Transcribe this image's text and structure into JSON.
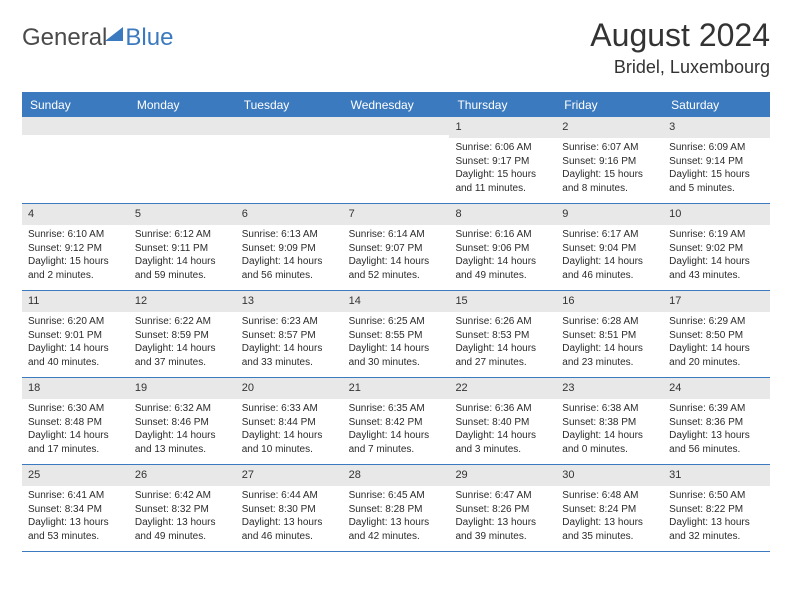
{
  "logo": {
    "word1": "General",
    "word2": "Blue"
  },
  "title": "August 2024",
  "location": "Bridel, Luxembourg",
  "colors": {
    "brand_blue": "#3b7abf",
    "header_text": "#ffffff",
    "daynum_bg": "#e8e8e8",
    "body_text": "#2b2b2b",
    "title_text": "#333333",
    "background": "#ffffff"
  },
  "typography": {
    "title_fontsize": 32,
    "location_fontsize": 18,
    "dayheader_fontsize": 12,
    "cell_fontsize": 10,
    "font_family": "Arial"
  },
  "day_names": [
    "Sunday",
    "Monday",
    "Tuesday",
    "Wednesday",
    "Thursday",
    "Friday",
    "Saturday"
  ],
  "weeks": [
    [
      {
        "n": "",
        "sr": "",
        "ss": "",
        "dl": ""
      },
      {
        "n": "",
        "sr": "",
        "ss": "",
        "dl": ""
      },
      {
        "n": "",
        "sr": "",
        "ss": "",
        "dl": ""
      },
      {
        "n": "",
        "sr": "",
        "ss": "",
        "dl": ""
      },
      {
        "n": "1",
        "sr": "Sunrise: 6:06 AM",
        "ss": "Sunset: 9:17 PM",
        "dl": "Daylight: 15 hours and 11 minutes."
      },
      {
        "n": "2",
        "sr": "Sunrise: 6:07 AM",
        "ss": "Sunset: 9:16 PM",
        "dl": "Daylight: 15 hours and 8 minutes."
      },
      {
        "n": "3",
        "sr": "Sunrise: 6:09 AM",
        "ss": "Sunset: 9:14 PM",
        "dl": "Daylight: 15 hours and 5 minutes."
      }
    ],
    [
      {
        "n": "4",
        "sr": "Sunrise: 6:10 AM",
        "ss": "Sunset: 9:12 PM",
        "dl": "Daylight: 15 hours and 2 minutes."
      },
      {
        "n": "5",
        "sr": "Sunrise: 6:12 AM",
        "ss": "Sunset: 9:11 PM",
        "dl": "Daylight: 14 hours and 59 minutes."
      },
      {
        "n": "6",
        "sr": "Sunrise: 6:13 AM",
        "ss": "Sunset: 9:09 PM",
        "dl": "Daylight: 14 hours and 56 minutes."
      },
      {
        "n": "7",
        "sr": "Sunrise: 6:14 AM",
        "ss": "Sunset: 9:07 PM",
        "dl": "Daylight: 14 hours and 52 minutes."
      },
      {
        "n": "8",
        "sr": "Sunrise: 6:16 AM",
        "ss": "Sunset: 9:06 PM",
        "dl": "Daylight: 14 hours and 49 minutes."
      },
      {
        "n": "9",
        "sr": "Sunrise: 6:17 AM",
        "ss": "Sunset: 9:04 PM",
        "dl": "Daylight: 14 hours and 46 minutes."
      },
      {
        "n": "10",
        "sr": "Sunrise: 6:19 AM",
        "ss": "Sunset: 9:02 PM",
        "dl": "Daylight: 14 hours and 43 minutes."
      }
    ],
    [
      {
        "n": "11",
        "sr": "Sunrise: 6:20 AM",
        "ss": "Sunset: 9:01 PM",
        "dl": "Daylight: 14 hours and 40 minutes."
      },
      {
        "n": "12",
        "sr": "Sunrise: 6:22 AM",
        "ss": "Sunset: 8:59 PM",
        "dl": "Daylight: 14 hours and 37 minutes."
      },
      {
        "n": "13",
        "sr": "Sunrise: 6:23 AM",
        "ss": "Sunset: 8:57 PM",
        "dl": "Daylight: 14 hours and 33 minutes."
      },
      {
        "n": "14",
        "sr": "Sunrise: 6:25 AM",
        "ss": "Sunset: 8:55 PM",
        "dl": "Daylight: 14 hours and 30 minutes."
      },
      {
        "n": "15",
        "sr": "Sunrise: 6:26 AM",
        "ss": "Sunset: 8:53 PM",
        "dl": "Daylight: 14 hours and 27 minutes."
      },
      {
        "n": "16",
        "sr": "Sunrise: 6:28 AM",
        "ss": "Sunset: 8:51 PM",
        "dl": "Daylight: 14 hours and 23 minutes."
      },
      {
        "n": "17",
        "sr": "Sunrise: 6:29 AM",
        "ss": "Sunset: 8:50 PM",
        "dl": "Daylight: 14 hours and 20 minutes."
      }
    ],
    [
      {
        "n": "18",
        "sr": "Sunrise: 6:30 AM",
        "ss": "Sunset: 8:48 PM",
        "dl": "Daylight: 14 hours and 17 minutes."
      },
      {
        "n": "19",
        "sr": "Sunrise: 6:32 AM",
        "ss": "Sunset: 8:46 PM",
        "dl": "Daylight: 14 hours and 13 minutes."
      },
      {
        "n": "20",
        "sr": "Sunrise: 6:33 AM",
        "ss": "Sunset: 8:44 PM",
        "dl": "Daylight: 14 hours and 10 minutes."
      },
      {
        "n": "21",
        "sr": "Sunrise: 6:35 AM",
        "ss": "Sunset: 8:42 PM",
        "dl": "Daylight: 14 hours and 7 minutes."
      },
      {
        "n": "22",
        "sr": "Sunrise: 6:36 AM",
        "ss": "Sunset: 8:40 PM",
        "dl": "Daylight: 14 hours and 3 minutes."
      },
      {
        "n": "23",
        "sr": "Sunrise: 6:38 AM",
        "ss": "Sunset: 8:38 PM",
        "dl": "Daylight: 14 hours and 0 minutes."
      },
      {
        "n": "24",
        "sr": "Sunrise: 6:39 AM",
        "ss": "Sunset: 8:36 PM",
        "dl": "Daylight: 13 hours and 56 minutes."
      }
    ],
    [
      {
        "n": "25",
        "sr": "Sunrise: 6:41 AM",
        "ss": "Sunset: 8:34 PM",
        "dl": "Daylight: 13 hours and 53 minutes."
      },
      {
        "n": "26",
        "sr": "Sunrise: 6:42 AM",
        "ss": "Sunset: 8:32 PM",
        "dl": "Daylight: 13 hours and 49 minutes."
      },
      {
        "n": "27",
        "sr": "Sunrise: 6:44 AM",
        "ss": "Sunset: 8:30 PM",
        "dl": "Daylight: 13 hours and 46 minutes."
      },
      {
        "n": "28",
        "sr": "Sunrise: 6:45 AM",
        "ss": "Sunset: 8:28 PM",
        "dl": "Daylight: 13 hours and 42 minutes."
      },
      {
        "n": "29",
        "sr": "Sunrise: 6:47 AM",
        "ss": "Sunset: 8:26 PM",
        "dl": "Daylight: 13 hours and 39 minutes."
      },
      {
        "n": "30",
        "sr": "Sunrise: 6:48 AM",
        "ss": "Sunset: 8:24 PM",
        "dl": "Daylight: 13 hours and 35 minutes."
      },
      {
        "n": "31",
        "sr": "Sunrise: 6:50 AM",
        "ss": "Sunset: 8:22 PM",
        "dl": "Daylight: 13 hours and 32 minutes."
      }
    ]
  ]
}
